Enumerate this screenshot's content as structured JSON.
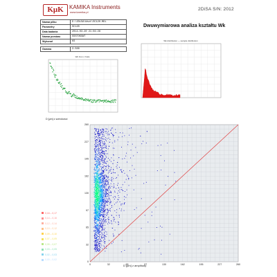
{
  "header": {
    "logo_text": "KμK",
    "brand_name": "KAMIKA Instruments",
    "brand_url": "www.kamika.pl",
    "device_label": "2DiSA S/N: 2012"
  },
  "info_table": [
    {
      "key": "Nazwa pliku",
      "value": "D:\\2DiSA\\Wszt\\SC120.MDL"
    },
    {
      "key": "Parametry",
      "value": "SC120"
    },
    {
      "key": "Data badania",
      "value": "2014-03-20 21:04:28"
    },
    {
      "key": "Nazwa pomiaru",
      "value": "SSSTOKOWT"
    },
    {
      "key": "Wykonał",
      "value": "KS"
    },
    {
      "key": "Gamma",
      "value": "3.500"
    }
  ],
  "title": "Dwuwymiarowa analiza kształtu Wk",
  "small_left_title": "Wk from c fruits",
  "small_right_title": "Wk distribution — sample distribution",
  "xlabel_left": "D [µm] z szerokości",
  "xlabel_main": "D [µm] z amplitudy",
  "legend": [
    {
      "label": "0,16 – 0,17",
      "color": "#ff6a6a"
    },
    {
      "label": "0,14 – 0,16",
      "color": "#ff8f8f"
    },
    {
      "label": "0,12 – 0,14",
      "color": "#ffb0a0"
    },
    {
      "label": "0,10 – 0,12",
      "color": "#ffc08a"
    },
    {
      "label": "0,09 – 0,10",
      "color": "#ffd24d"
    },
    {
      "label": "0,07 – 0,09",
      "color": "#f5e15a"
    },
    {
      "label": "0,05 – 0,07",
      "color": "#b9e88a"
    },
    {
      "label": "0,03 – 0,05",
      "color": "#8ee0b5"
    },
    {
      "label": "0,02 – 0,03",
      "color": "#87d3ef"
    },
    {
      "label": "0,00 – 0,02",
      "color": "#b8dcff"
    }
  ],
  "colors": {
    "brand": "#b52222",
    "scatter_dense": "#00ff80",
    "scatter_mid": "#00a0ff",
    "scatter_sparse": "#1010c8",
    "reference_line": "#e04040",
    "histogram": "#e01818",
    "green_series": "#22a03a"
  },
  "chart_data": [
    {
      "type": "scatter",
      "name": "main",
      "x_ticks": [
        "0",
        "32",
        "65",
        "97",
        "130",
        "162",
        "195",
        "227",
        "260"
      ],
      "y_ticks": [
        "0",
        "32",
        "65",
        "97",
        "130",
        "162",
        "195",
        "227",
        "260"
      ],
      "xlim": [
        0,
        260
      ],
      "ylim": [
        0,
        260
      ],
      "grid": true,
      "reference_line": {
        "from": [
          0,
          0
        ],
        "to": [
          260,
          260
        ]
      },
      "description_points": "dense cloud centered near x≈12, y≈120; spread y 10–255, x 5–120"
    },
    {
      "type": "line",
      "name": "left-small",
      "xlim": [
        0,
        260
      ],
      "ylim": [
        0,
        1
      ],
      "grid": true
    },
    {
      "type": "bar",
      "name": "right-small-histogram",
      "grid": true
    }
  ]
}
